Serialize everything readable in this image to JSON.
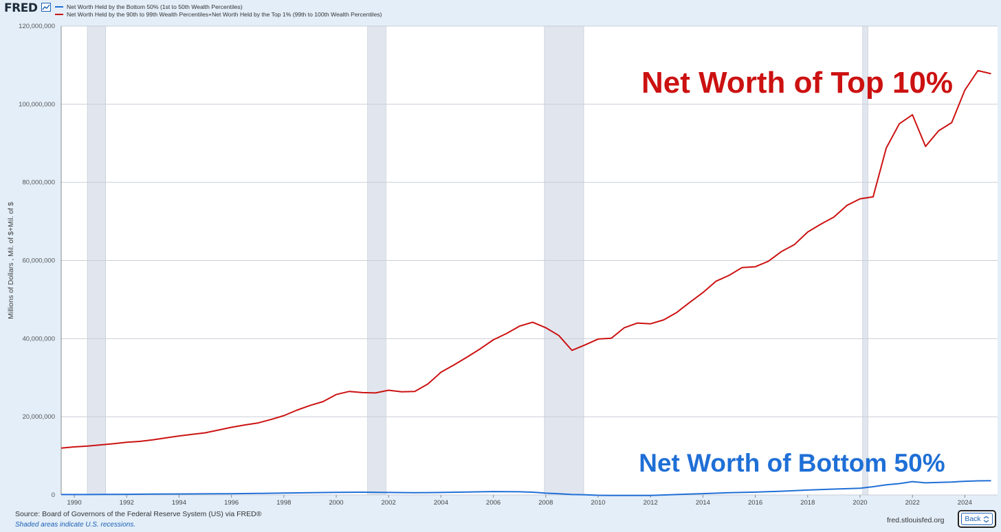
{
  "header": {
    "logo_text": "FRED",
    "logo_icon": "line-chart-icon"
  },
  "legend": [
    {
      "label": "Net Worth Held by the Bottom 50% (1st to 50th Wealth Percentiles)",
      "color": "#1f6fd6"
    },
    {
      "label": "Net Worth Held by the 90th to 99th Wealth Percentiles+Net Worth Held by the Top 1% (99th to 100th Wealth Percentiles)",
      "color": "#cc1111"
    }
  ],
  "footer": {
    "source": "Source: Board of Governors of the Federal Reserve System (US) via FRED®",
    "note": "Shaded areas indicate U.S. recessions.",
    "url": "fred.stlouisfed.org",
    "back_label": "Back"
  },
  "chart_data": {
    "type": "line",
    "ylabel": "Millions of Dollars , Mil. of $+Mil. of $",
    "ylim": [
      0,
      120000000
    ],
    "yticks": [
      0,
      20000000,
      40000000,
      60000000,
      80000000,
      100000000,
      120000000
    ],
    "ytick_labels": [
      "0",
      "20,000,000",
      "40,000,000",
      "60,000,000",
      "80,000,000",
      "100,000,000",
      "120,000,000"
    ],
    "xlim": [
      1989.5,
      2025.25
    ],
    "xticks": [
      1990,
      1992,
      1994,
      1996,
      1998,
      2000,
      2002,
      2004,
      2006,
      2008,
      2010,
      2012,
      2014,
      2016,
      2018,
      2020,
      2022,
      2024
    ],
    "xtick_labels": [
      "1990",
      "1992",
      "1994",
      "1996",
      "1998",
      "2000",
      "2002",
      "2004",
      "2006",
      "2008",
      "2010",
      "2012",
      "2014",
      "2016",
      "2018",
      "2020",
      "2022",
      "2024"
    ],
    "grid": true,
    "recessions": [
      [
        1990.5,
        1991.2
      ],
      [
        2001.2,
        2001.9
      ],
      [
        2007.95,
        2009.45
      ],
      [
        2020.1,
        2020.3
      ]
    ],
    "annotations": [
      {
        "text": "Net Worth of Top 10%",
        "color": "#cc1111",
        "x": 2017.6,
        "y": 103000000
      },
      {
        "text": "Net Worth of Bottom 50%",
        "color": "#1f6fd6",
        "x": 2017.4,
        "y": 6000000
      }
    ],
    "series": [
      {
        "name": "Net Worth Held by the 90th to 99th Wealth Percentiles+Net Worth Held by the Top 1% (99th to 100th Wealth Percentiles)",
        "color": "#cc1111",
        "x": [
          1989.5,
          1990,
          1990.5,
          1991,
          1991.5,
          1992,
          1992.5,
          1993,
          1993.5,
          1994,
          1994.5,
          1995,
          1995.5,
          1996,
          1996.5,
          1997,
          1997.5,
          1998,
          1998.5,
          1999,
          1999.5,
          2000,
          2000.5,
          2001,
          2001.5,
          2002,
          2002.5,
          2003,
          2003.5,
          2004,
          2004.5,
          2005,
          2005.5,
          2006,
          2006.5,
          2007,
          2007.5,
          2008,
          2008.5,
          2009,
          2009.5,
          2010,
          2010.5,
          2011,
          2011.5,
          2012,
          2012.5,
          2013,
          2013.5,
          2014,
          2014.5,
          2015,
          2015.5,
          2016,
          2016.5,
          2017,
          2017.5,
          2018,
          2018.5,
          2019,
          2019.5,
          2020,
          2020.5,
          2021,
          2021.5,
          2022,
          2022.5,
          2023,
          2023.5,
          2024,
          2024.5,
          2025
        ],
        "values": [
          12000000,
          12300000,
          12500000,
          12800000,
          13100000,
          13500000,
          13700000,
          14100000,
          14600000,
          15100000,
          15500000,
          15900000,
          16600000,
          17300000,
          17900000,
          18400000,
          19300000,
          20300000,
          21700000,
          22900000,
          23900000,
          25700000,
          26500000,
          26200000,
          26100000,
          26800000,
          26400000,
          26500000,
          28400000,
          31400000,
          33300000,
          35300000,
          37400000,
          39700000,
          41300000,
          43200000,
          44200000,
          42800000,
          40800000,
          37000000,
          38400000,
          39900000,
          40100000,
          42800000,
          44000000,
          43800000,
          44800000,
          46700000,
          49300000,
          51800000,
          54700000,
          56200000,
          58200000,
          58400000,
          59800000,
          62300000,
          64100000,
          67300000,
          69300000,
          71100000,
          74100000,
          75800000,
          76300000,
          88800000,
          95000000,
          97300000,
          89200000,
          93200000,
          95300000,
          103600000,
          108600000,
          107800000
        ]
      },
      {
        "name": "Net Worth Held by the Bottom 50% (1st to 50th Wealth Percentiles)",
        "color": "#1f6fd6",
        "x": [
          1989.5,
          1990,
          1991,
          1992,
          1993,
          1994,
          1995,
          1996,
          1997,
          1998,
          1999,
          2000,
          2001,
          2002,
          2003,
          2004,
          2005,
          2006,
          2007,
          2007.5,
          2008,
          2008.5,
          2009,
          2009.5,
          2010,
          2010.5,
          2011,
          2011.5,
          2012,
          2013,
          2014,
          2015,
          2016,
          2017,
          2018,
          2019,
          2020,
          2020.5,
          2021,
          2021.5,
          2022,
          2022.5,
          2023,
          2023.5,
          2024,
          2024.5,
          2025
        ],
        "values": [
          100000,
          100000,
          120000,
          160000,
          220000,
          250000,
          280000,
          320000,
          380000,
          470000,
          560000,
          650000,
          700000,
          640000,
          560000,
          640000,
          760000,
          860000,
          810000,
          700000,
          450000,
          300000,
          100000,
          50000,
          -80000,
          -120000,
          -130000,
          -140000,
          -120000,
          100000,
          330000,
          560000,
          720000,
          950000,
          1250000,
          1500000,
          1700000,
          2100000,
          2600000,
          2900000,
          3400000,
          3100000,
          3200000,
          3300000,
          3500000,
          3600000,
          3650000
        ]
      }
    ]
  }
}
